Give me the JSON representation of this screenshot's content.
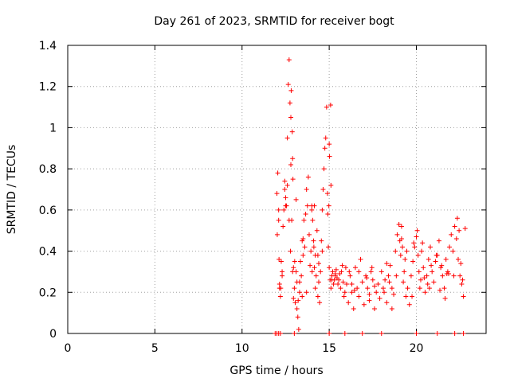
{
  "chart_data": {
    "type": "scatter",
    "title": "Day 261 of 2023, SRMTID for receiver bogt",
    "xlabel": "GPS time / hours",
    "ylabel": "SRMTID / TECUs",
    "xlim": [
      0,
      24
    ],
    "ylim": [
      0,
      1.4
    ],
    "xticks": [
      0,
      5,
      10,
      15,
      20
    ],
    "xtick_labels": [
      "0",
      "5",
      "10",
      "15",
      "20"
    ],
    "yticks": [
      0,
      0.2,
      0.4,
      0.6,
      0.8,
      1.0,
      1.2,
      1.4
    ],
    "ytick_labels": [
      "0",
      "0.2",
      "0.4",
      "0.6",
      "0.8",
      "1",
      "1.2",
      "1.4"
    ],
    "grid": true,
    "marker": "+",
    "series": [
      {
        "name": "SRMTID",
        "color": "#ff0000",
        "x": [
          12.0,
          12.05,
          12.1,
          12.15,
          12.2,
          12.25,
          12.3,
          12.35,
          12.4,
          12.45,
          12.5,
          12.55,
          12.6,
          12.65,
          12.7,
          12.75,
          12.8,
          12.85,
          12.9,
          12.95,
          13.0,
          13.05,
          13.1,
          13.15,
          13.2,
          13.25,
          13.3,
          13.35,
          13.4,
          13.45,
          13.5,
          13.55,
          13.6,
          13.65,
          13.7,
          13.75,
          13.8,
          13.85,
          13.9,
          13.95,
          14.0,
          14.05,
          14.1,
          14.15,
          14.2,
          14.25,
          14.3,
          14.35,
          14.4,
          14.45,
          14.5,
          14.55,
          14.6,
          14.65,
          14.7,
          14.75,
          14.8,
          14.85,
          14.9,
          14.95,
          15.0,
          15.05,
          15.1,
          15.15,
          15.2,
          15.25,
          15.3,
          15.35,
          15.4,
          15.45,
          15.5,
          15.55,
          15.6,
          15.65,
          15.7,
          15.75,
          15.8,
          15.85,
          15.9,
          15.95,
          16.0,
          16.1,
          16.2,
          16.3,
          16.4,
          16.5,
          16.6,
          16.7,
          16.8,
          16.9,
          17.0,
          17.1,
          17.2,
          17.3,
          17.4,
          17.5,
          17.6,
          17.7,
          17.8,
          17.9,
          18.0,
          18.1,
          18.2,
          18.3,
          18.4,
          18.5,
          18.6,
          18.7,
          18.8,
          18.9,
          19.0,
          19.05,
          19.1,
          19.15,
          19.2,
          19.25,
          19.3,
          19.4,
          19.5,
          19.6,
          19.7,
          19.8,
          19.9,
          20.0,
          20.05,
          20.1,
          20.15,
          20.2,
          20.25,
          20.3,
          20.4,
          20.5,
          20.6,
          20.7,
          20.8,
          20.9,
          21.0,
          21.1,
          21.2,
          21.3,
          21.4,
          21.5,
          21.6,
          21.7,
          21.8,
          21.9,
          22.0,
          22.1,
          22.2,
          22.3,
          22.4,
          22.5,
          22.6,
          22.7,
          22.8,
          12.1,
          12.6,
          12.8,
          12.9,
          13.1,
          13.3,
          14.0,
          14.2,
          15.0,
          15.1,
          12.02,
          12.12,
          12.22,
          12.82,
          12.88,
          13.02,
          13.22,
          14.02,
          14.12,
          15.02,
          15.08,
          14.92,
          14.98,
          12.92,
          12.78,
          11.9,
          12.0,
          12.1,
          12.2,
          13.0,
          15.0,
          15.9,
          16.9,
          18.0,
          20.0,
          21.2,
          22.2,
          22.7,
          12.3,
          12.5,
          12.7,
          13.5,
          13.7,
          14.4,
          14.6,
          16.3,
          16.7,
          17.3,
          17.6,
          18.3,
          18.6,
          19.45,
          19.75,
          20.45,
          20.75,
          21.45,
          21.75,
          22.45,
          12.15,
          12.45,
          12.95,
          13.15,
          13.45,
          14.15,
          14.35,
          15.15,
          15.35,
          16.15,
          16.45,
          17.15,
          17.45,
          18.15,
          18.45,
          19.15,
          19.35,
          20.35,
          20.65,
          21.15,
          21.35,
          21.65,
          22.15,
          22.35,
          22.65,
          22.55,
          21.85,
          20.85,
          19.85,
          18.85
        ],
        "y": [
          0.68,
          0.78,
          0.55,
          0.22,
          0.18,
          0.35,
          0.28,
          0.52,
          0.6,
          0.74,
          0.66,
          0.62,
          0.95,
          1.21,
          1.33,
          1.12,
          0.82,
          0.55,
          0.3,
          0.17,
          0.22,
          0.15,
          0.3,
          0.12,
          0.08,
          0.02,
          0.2,
          0.35,
          0.28,
          0.45,
          0.38,
          0.55,
          0.42,
          0.58,
          0.7,
          0.62,
          0.76,
          0.48,
          0.33,
          0.4,
          0.6,
          0.55,
          0.45,
          0.32,
          0.22,
          0.28,
          0.5,
          0.38,
          0.25,
          0.15,
          0.3,
          0.45,
          0.6,
          0.7,
          0.8,
          0.9,
          0.95,
          1.1,
          0.68,
          0.42,
          0.32,
          0.26,
          0.22,
          0.28,
          0.3,
          0.24,
          0.26,
          0.28,
          0.31,
          0.27,
          0.24,
          0.26,
          0.29,
          0.22,
          0.3,
          0.33,
          0.25,
          0.18,
          0.2,
          0.32,
          0.24,
          0.15,
          0.28,
          0.2,
          0.12,
          0.32,
          0.22,
          0.18,
          0.36,
          0.25,
          0.14,
          0.28,
          0.22,
          0.19,
          0.3,
          0.26,
          0.12,
          0.2,
          0.24,
          0.17,
          0.3,
          0.22,
          0.26,
          0.15,
          0.28,
          0.33,
          0.22,
          0.19,
          0.4,
          0.48,
          0.53,
          0.45,
          0.38,
          0.52,
          0.42,
          0.25,
          0.3,
          0.18,
          0.22,
          0.14,
          0.28,
          0.35,
          0.42,
          0.47,
          0.5,
          0.38,
          0.3,
          0.22,
          0.26,
          0.4,
          0.32,
          0.2,
          0.28,
          0.36,
          0.42,
          0.3,
          0.25,
          0.35,
          0.38,
          0.45,
          0.32,
          0.28,
          0.22,
          0.36,
          0.3,
          0.42,
          0.48,
          0.4,
          0.52,
          0.46,
          0.36,
          0.28,
          0.24,
          0.18,
          0.51,
          0.6,
          0.72,
          1.05,
          0.85,
          0.65,
          0.25,
          0.62,
          0.38,
          0.92,
          0.72,
          0.48,
          0.36,
          0.22,
          1.18,
          0.98,
          0.35,
          0.16,
          0.3,
          0.42,
          0.86,
          1.11,
          0.58,
          0.62,
          0.75,
          0.4,
          0.0,
          0.0,
          0.0,
          0.0,
          0.0,
          0.0,
          0.0,
          0.0,
          0.0,
          0.0,
          0.0,
          0.0,
          0.0,
          0.3,
          0.62,
          0.55,
          0.46,
          0.2,
          0.34,
          0.4,
          0.24,
          0.3,
          0.16,
          0.23,
          0.34,
          0.12,
          0.4,
          0.18,
          0.27,
          0.22,
          0.33,
          0.29,
          0.5,
          0.24,
          0.7,
          0.32,
          0.25,
          0.18,
          0.62,
          0.18,
          0.26,
          0.29,
          0.3,
          0.21,
          0.27,
          0.32,
          0.2,
          0.25,
          0.46,
          0.36,
          0.44,
          0.24,
          0.38,
          0.21,
          0.17,
          0.28,
          0.56,
          0.26,
          0.34,
          0.29,
          0.33,
          0.44,
          0.28
        ]
      }
    ]
  }
}
